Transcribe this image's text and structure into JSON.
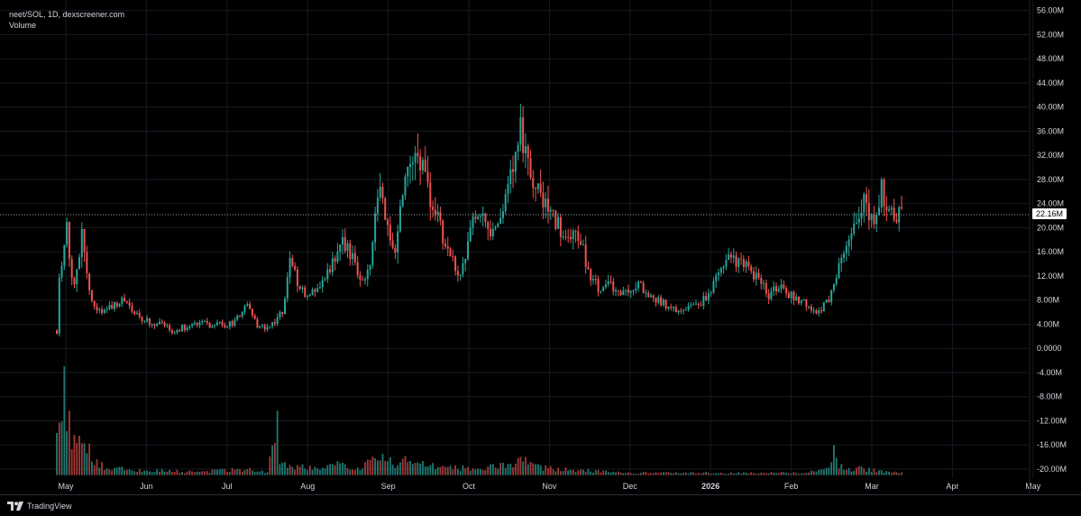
{
  "legend": {
    "symbol_line": "neet/SOL, 1D, dexscreener.com",
    "volume_label": "Volume"
  },
  "branding": {
    "text": "TradingView",
    "icon": "tradingview-logo-icon"
  },
  "colors": {
    "background": "#000000",
    "grid": "#161a22",
    "up": "#26a69a",
    "down": "#ef5350",
    "up_volume": "#1f7a72",
    "down_volume": "#a33a38",
    "axis_text": "#d1d4dc"
  },
  "last_price_label": "22.16M",
  "chart_data": {
    "type": "candlestick",
    "title": "neet/SOL, 1D, dexscreener.com",
    "x_labels": [
      "May",
      "Jun",
      "Jul",
      "Aug",
      "Sep",
      "Oct",
      "Nov",
      "Dec",
      "2026",
      "Feb",
      "Mar",
      "Apr",
      "May"
    ],
    "y_ticks": [
      "56.00M",
      "52.00M",
      "48.00M",
      "44.00M",
      "40.00M",
      "36.00M",
      "32.00M",
      "28.00M",
      "24.00M",
      "20.00M",
      "16.00M",
      "12.00M",
      "8.00M",
      "4.00M",
      "0.0000",
      "-4.00M",
      "-8.00M",
      "-12.00M",
      "-16.00M",
      "-20.00M"
    ],
    "y_range": [
      -21.5,
      57
    ],
    "grid": true,
    "last_value": 22.16,
    "price_path": [
      [
        0,
        3
      ],
      [
        1,
        12
      ],
      [
        2,
        15
      ],
      [
        4,
        20
      ],
      [
        5,
        14
      ],
      [
        7,
        10
      ],
      [
        9,
        16
      ],
      [
        10,
        21
      ],
      [
        12,
        12
      ],
      [
        14,
        8
      ],
      [
        17,
        6
      ],
      [
        22,
        7
      ],
      [
        27,
        8
      ],
      [
        33,
        5
      ],
      [
        40,
        4
      ],
      [
        47,
        3
      ],
      [
        54,
        4
      ],
      [
        62,
        4
      ],
      [
        70,
        4
      ],
      [
        76,
        7
      ],
      [
        80,
        4
      ],
      [
        84,
        3
      ],
      [
        90,
        6
      ],
      [
        93,
        15
      ],
      [
        96,
        11
      ],
      [
        100,
        8
      ],
      [
        104,
        10
      ],
      [
        110,
        14
      ],
      [
        114,
        18
      ],
      [
        118,
        15
      ],
      [
        122,
        11
      ],
      [
        125,
        14
      ],
      [
        128,
        26
      ],
      [
        131,
        22
      ],
      [
        135,
        17
      ],
      [
        139,
        28
      ],
      [
        143,
        34
      ],
      [
        146,
        31
      ],
      [
        150,
        24
      ],
      [
        154,
        19
      ],
      [
        158,
        14
      ],
      [
        161,
        12
      ],
      [
        165,
        20
      ],
      [
        169,
        22
      ],
      [
        173,
        18
      ],
      [
        178,
        21
      ],
      [
        181,
        30
      ],
      [
        185,
        36
      ],
      [
        188,
        30
      ],
      [
        192,
        26
      ],
      [
        196,
        22
      ],
      [
        200,
        20
      ],
      [
        204,
        18
      ],
      [
        207,
        21
      ],
      [
        212,
        13
      ],
      [
        216,
        10
      ],
      [
        220,
        11
      ],
      [
        224,
        9
      ],
      [
        228,
        10
      ],
      [
        232,
        11
      ],
      [
        236,
        9
      ],
      [
        240,
        8
      ],
      [
        244,
        7
      ],
      [
        248,
        6
      ],
      [
        252,
        7
      ],
      [
        256,
        7
      ],
      [
        260,
        9
      ],
      [
        264,
        12
      ],
      [
        268,
        15
      ],
      [
        272,
        14
      ],
      [
        276,
        13
      ],
      [
        280,
        12
      ],
      [
        284,
        9
      ],
      [
        288,
        10
      ],
      [
        292,
        9
      ],
      [
        296,
        8
      ],
      [
        300,
        7
      ],
      [
        304,
        6
      ],
      [
        308,
        8
      ],
      [
        311,
        11
      ],
      [
        314,
        17
      ],
      [
        317,
        18
      ],
      [
        320,
        22
      ],
      [
        323,
        25
      ],
      [
        326,
        20
      ],
      [
        329,
        26
      ],
      [
        332,
        24
      ],
      [
        335,
        21
      ],
      [
        337,
        22
      ]
    ],
    "volume_path": [
      [
        0,
        64
      ],
      [
        1,
        58
      ],
      [
        2,
        55
      ],
      [
        3,
        68
      ],
      [
        4,
        50
      ],
      [
        5,
        45
      ],
      [
        6,
        40
      ],
      [
        7,
        35
      ],
      [
        9,
        30
      ],
      [
        10,
        38
      ],
      [
        11,
        28
      ],
      [
        12,
        22
      ],
      [
        14,
        16
      ],
      [
        16,
        10
      ],
      [
        20,
        7
      ],
      [
        30,
        4
      ],
      [
        40,
        4
      ],
      [
        50,
        3
      ],
      [
        60,
        3
      ],
      [
        68,
        4
      ],
      [
        76,
        5
      ],
      [
        84,
        2
      ],
      [
        88,
        64
      ],
      [
        89,
        15
      ],
      [
        92,
        8
      ],
      [
        100,
        6
      ],
      [
        112,
        9
      ],
      [
        120,
        6
      ],
      [
        126,
        11
      ],
      [
        130,
        14
      ],
      [
        134,
        10
      ],
      [
        140,
        13
      ],
      [
        146,
        9
      ],
      [
        152,
        7
      ],
      [
        160,
        6
      ],
      [
        170,
        6
      ],
      [
        180,
        8
      ],
      [
        186,
        12
      ],
      [
        192,
        7
      ],
      [
        200,
        5
      ],
      [
        210,
        4
      ],
      [
        220,
        3
      ],
      [
        230,
        2
      ],
      [
        240,
        2
      ],
      [
        250,
        2
      ],
      [
        260,
        2
      ],
      [
        270,
        2
      ],
      [
        280,
        2
      ],
      [
        290,
        2
      ],
      [
        300,
        2
      ],
      [
        305,
        5
      ],
      [
        308,
        8
      ],
      [
        310,
        28
      ],
      [
        312,
        7
      ],
      [
        316,
        5
      ],
      [
        320,
        6
      ],
      [
        326,
        4
      ],
      [
        332,
        3
      ],
      [
        337,
        2
      ]
    ],
    "volume_max_pct": 100
  }
}
